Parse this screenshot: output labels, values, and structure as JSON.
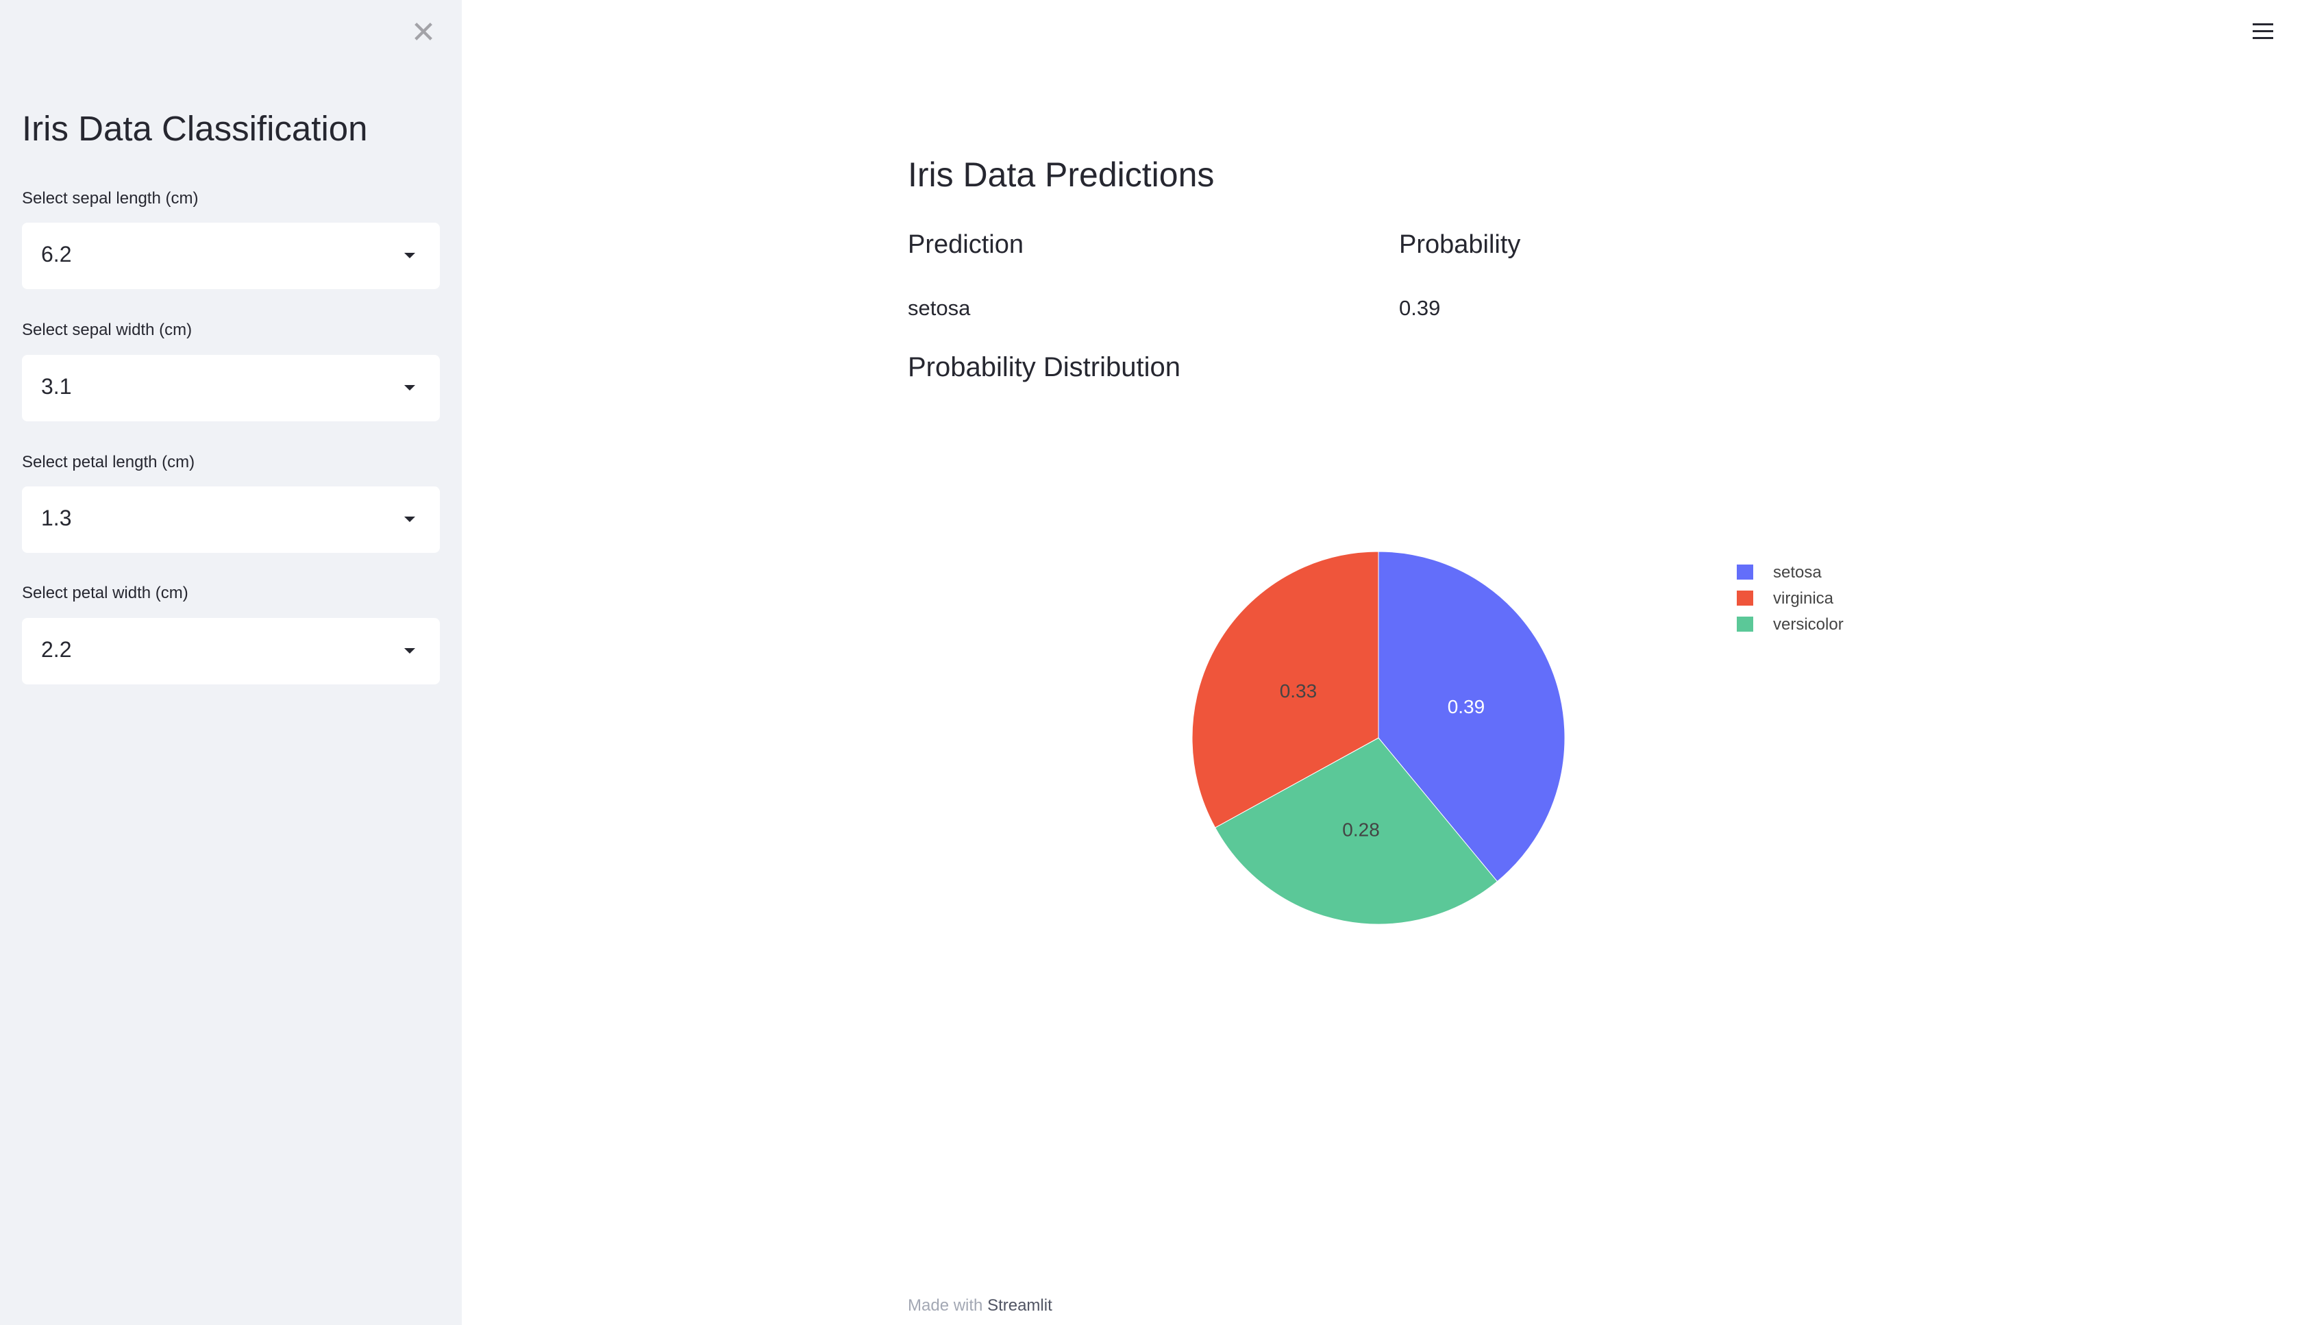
{
  "sidebar": {
    "title": "Iris Data Classification",
    "close_icon": "close-x-icon",
    "fields": [
      {
        "label": "Select sepal length (cm)",
        "value": "6.2"
      },
      {
        "label": "Select sepal width (cm)",
        "value": "3.1"
      },
      {
        "label": "Select petal length (cm)",
        "value": "1.3"
      },
      {
        "label": "Select petal width (cm)",
        "value": "2.2"
      }
    ]
  },
  "header": {
    "menu_icon": "hamburger-menu-icon"
  },
  "main": {
    "title": "Iris Data Predictions",
    "table": {
      "headers": [
        "Prediction",
        "Probability"
      ],
      "row": [
        "setosa",
        "0.39"
      ]
    },
    "section_title": "Probability Distribution"
  },
  "chart_data": {
    "type": "pie",
    "categories": [
      "setosa",
      "virginica",
      "versicolor"
    ],
    "values": [
      0.39,
      0.33,
      0.28
    ],
    "data_labels": [
      "0.39",
      "0.33",
      "0.28"
    ],
    "colors": {
      "setosa": "#636efa",
      "virginica": "#ef553b",
      "versicolor": "#5bc898"
    },
    "direction": "clockwise",
    "legend": "top-right"
  },
  "footer": {
    "prefix": "Made with",
    "brand": "Streamlit"
  }
}
